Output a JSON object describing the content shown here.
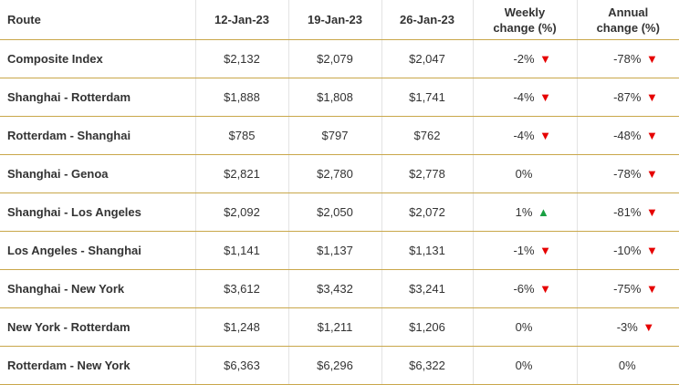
{
  "table": {
    "headers": {
      "route": "Route",
      "date1": "12-Jan-23",
      "date2": "19-Jan-23",
      "date3": "26-Jan-23",
      "weekly_line1": "Weekly",
      "weekly_line2": "change (%)",
      "annual_line1": "Annual",
      "annual_line2": "change (%)"
    },
    "rows": [
      {
        "route": "Composite Index",
        "d1": "$2,132",
        "d2": "$2,079",
        "d3": "$2,047",
        "weekly": "-2%",
        "weekly_dir": "down",
        "annual": "-78%",
        "annual_dir": "down"
      },
      {
        "route": "Shanghai - Rotterdam",
        "d1": "$1,888",
        "d2": "$1,808",
        "d3": "$1,741",
        "weekly": "-4%",
        "weekly_dir": "down",
        "annual": "-87%",
        "annual_dir": "down"
      },
      {
        "route": "Rotterdam - Shanghai",
        "d1": "$785",
        "d2": "$797",
        "d3": "$762",
        "weekly": "-4%",
        "weekly_dir": "down",
        "annual": "-48%",
        "annual_dir": "down"
      },
      {
        "route": "Shanghai - Genoa",
        "d1": "$2,821",
        "d2": "$2,780",
        "d3": "$2,778",
        "weekly": "0%",
        "weekly_dir": "none",
        "annual": "-78%",
        "annual_dir": "down"
      },
      {
        "route": "Shanghai - Los Angeles",
        "d1": "$2,092",
        "d2": "$2,050",
        "d3": "$2,072",
        "weekly": "1%",
        "weekly_dir": "up",
        "annual": "-81%",
        "annual_dir": "down"
      },
      {
        "route": "Los Angeles - Shanghai",
        "d1": "$1,141",
        "d2": "$1,137",
        "d3": "$1,131",
        "weekly": "-1%",
        "weekly_dir": "down",
        "annual": "-10%",
        "annual_dir": "down"
      },
      {
        "route": "Shanghai - New York",
        "d1": "$3,612",
        "d2": "$3,432",
        "d3": "$3,241",
        "weekly": "-6%",
        "weekly_dir": "down",
        "annual": "-75%",
        "annual_dir": "down"
      },
      {
        "route": "New York - Rotterdam",
        "d1": "$1,248",
        "d2": "$1,211",
        "d3": "$1,206",
        "weekly": "0%",
        "weekly_dir": "none",
        "annual": "-3%",
        "annual_dir": "down"
      },
      {
        "route": "Rotterdam - New York",
        "d1": "$6,363",
        "d2": "$6,296",
        "d3": "$6,322",
        "weekly": "0%",
        "weekly_dir": "none",
        "annual": "0%",
        "annual_dir": "none"
      }
    ],
    "colors": {
      "down_arrow": "#e60000",
      "up_arrow": "#1aa043",
      "rule": "#c9a74a",
      "text": "#333333"
    },
    "icons": {
      "down": "triangle-down-icon",
      "up": "triangle-up-icon"
    }
  }
}
